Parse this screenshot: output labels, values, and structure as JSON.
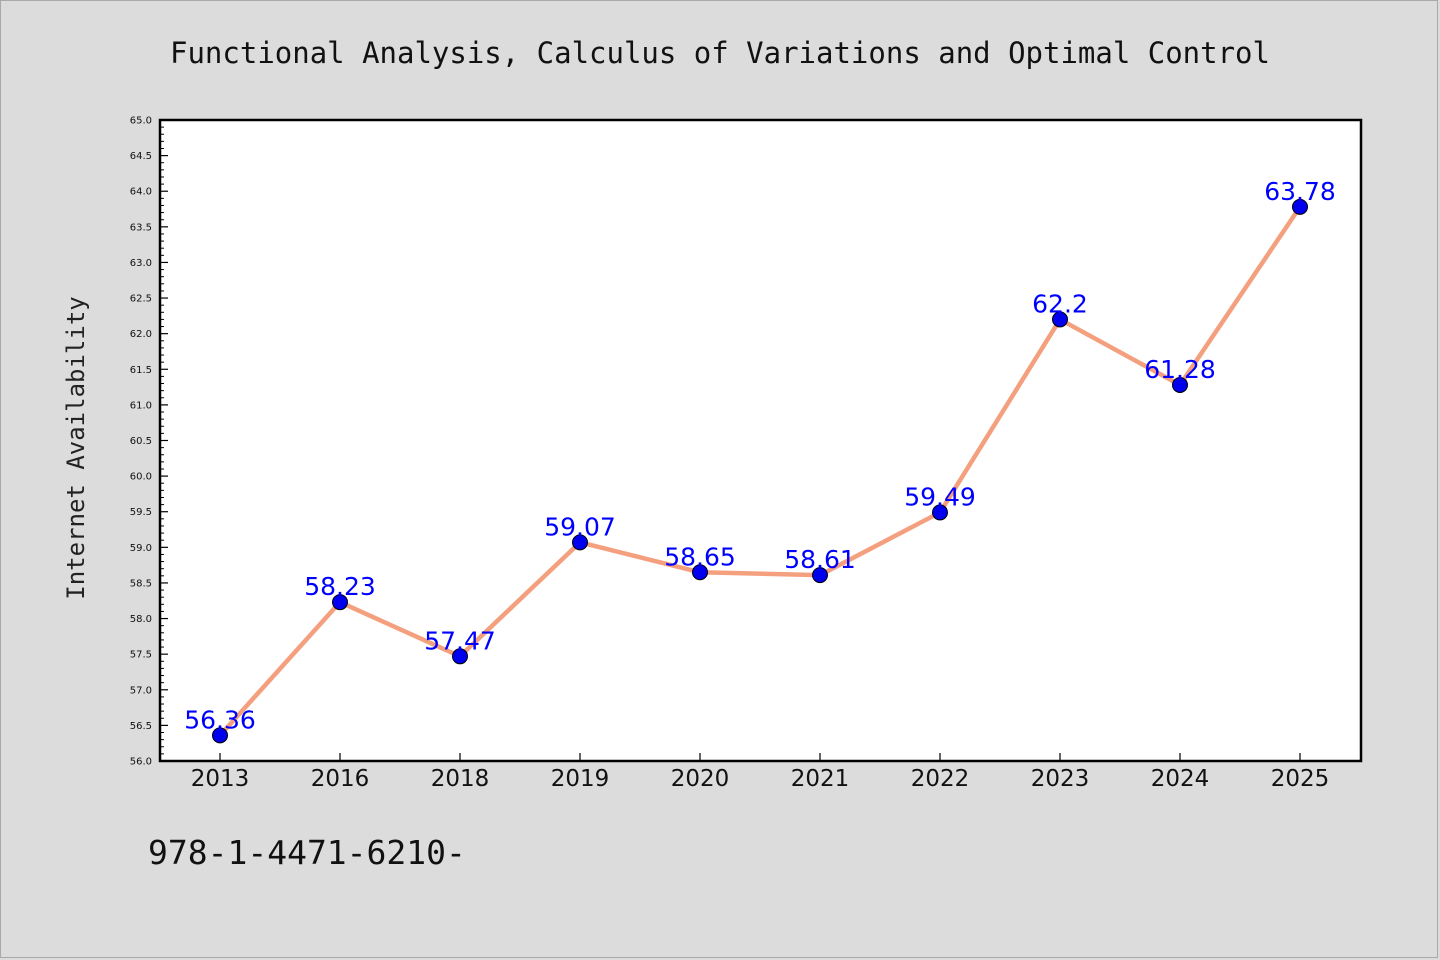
{
  "chart_data": {
    "type": "line",
    "title": "Functional Analysis, Calculus of Variations and Optimal Control",
    "ylabel": "Internet Availability",
    "xlabel": "",
    "categories": [
      "2013",
      "2016",
      "2018",
      "2019",
      "2020",
      "2021",
      "2022",
      "2023",
      "2024",
      "2025"
    ],
    "series": [
      {
        "values": [
          56.36,
          58.23,
          57.47,
          59.07,
          58.65,
          58.61,
          59.49,
          62.2,
          61.28,
          63.78
        ],
        "labels": [
          "56.36",
          "58.23",
          "57.47",
          "59.07",
          "58.65",
          "58.61",
          "59.49",
          "62.2",
          "61.28",
          "63.78"
        ]
      }
    ],
    "ylim": [
      56.0,
      65.0
    ],
    "yticks": [
      "56.0",
      "56.5",
      "57.0",
      "57.5",
      "58.0",
      "58.5",
      "59.0",
      "59.5",
      "60.0",
      "60.5",
      "61.0",
      "61.5",
      "62.0",
      "62.5",
      "63.0",
      "63.5",
      "64.0",
      "64.5",
      "65.0"
    ],
    "grid": false,
    "legend": "none",
    "line_color": "#f4a07f",
    "marker_color": "#0000ee",
    "label_color": "#0000ff"
  },
  "footer": {
    "text": "978-1-4471-6210-"
  }
}
